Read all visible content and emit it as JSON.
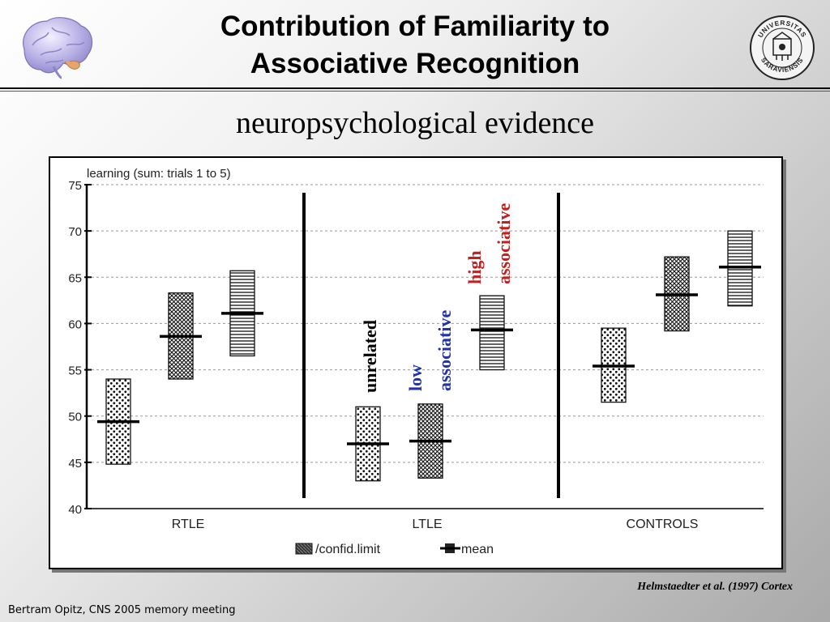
{
  "slide": {
    "title_line1": "Contribution of Familiarity to",
    "title_line2": "Associative Recognition",
    "subtitle": "neuropsychological evidence",
    "citation": "Helmstaedter et al. (1997) Cortex",
    "footer": "Bertram Opitz, CNS 2005 memory meeting",
    "logo_left": "brain-icon",
    "logo_right": "university-seal-icon",
    "seal_text": "UNIVERSITAS SARAVIENSIS"
  },
  "chart_data": {
    "type": "box",
    "title": "learning (sum: trials 1 to 5)",
    "ylim": [
      40,
      75
    ],
    "yticks": [
      "75",
      "70",
      "65",
      "60",
      "55",
      "50",
      "45",
      "40"
    ],
    "grid": true,
    "groups": [
      "RTLE",
      "LTLE",
      "CONTROLS"
    ],
    "conditions": [
      "unrelated",
      "low associative",
      "high associative"
    ],
    "condition_labels": [
      {
        "lines": [
          "unrelated"
        ],
        "color": "#000000"
      },
      {
        "lines": [
          "low",
          "associative"
        ],
        "color": "#2233aa"
      },
      {
        "lines": [
          "high",
          "associative"
        ],
        "color": "#c41e1e"
      }
    ],
    "series": [
      {
        "group": "RTLE",
        "condition": "unrelated",
        "low": 44.8,
        "high": 54.0,
        "mean": 49.4
      },
      {
        "group": "RTLE",
        "condition": "low associative",
        "low": 54.0,
        "high": 63.3,
        "mean": 58.6
      },
      {
        "group": "RTLE",
        "condition": "high associative",
        "low": 56.5,
        "high": 65.7,
        "mean": 61.1
      },
      {
        "group": "LTLE",
        "condition": "unrelated",
        "low": 43.0,
        "high": 51.0,
        "mean": 47.0
      },
      {
        "group": "LTLE",
        "condition": "low associative",
        "low": 43.3,
        "high": 51.3,
        "mean": 47.3
      },
      {
        "group": "LTLE",
        "condition": "high associative",
        "low": 55.0,
        "high": 63.0,
        "mean": 59.3
      },
      {
        "group": "CONTROLS",
        "condition": "unrelated",
        "low": 51.5,
        "high": 59.5,
        "mean": 55.4
      },
      {
        "group": "CONTROLS",
        "condition": "low associative",
        "low": 59.2,
        "high": 67.2,
        "mean": 63.1
      },
      {
        "group": "CONTROLS",
        "condition": "high associative",
        "low": 61.9,
        "high": 70.0,
        "mean": 66.1
      }
    ],
    "legend": {
      "confidence": "/confid.limit",
      "mean": "mean",
      "position": "bottom-center"
    }
  }
}
